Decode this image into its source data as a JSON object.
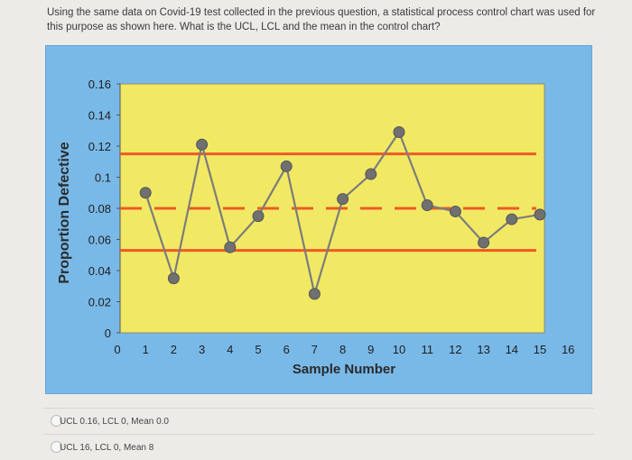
{
  "question": {
    "text": "Using the same data on Covid-19 test collected in the previous question, a statistical process control chart was used for this purpose as shown here. What is the UCL, LCL and the mean in the control chart?"
  },
  "options": [
    {
      "label": "UCL 0.16, LCL 0, Mean 0.0"
    },
    {
      "label": "UCL 16, LCL 0, Mean 8"
    }
  ],
  "colors": {
    "plot_background": "#f1e964",
    "frame_background": "#79b9e8",
    "data_line": "#7c7c7c",
    "data_point": "#707070",
    "control_lines": "#ee5a24"
  },
  "chart_data": {
    "type": "line",
    "xlabel": "Sample Number",
    "ylabel": "Proportion Defective",
    "xlim": [
      0,
      16
    ],
    "ylim": [
      0,
      0.16
    ],
    "x_ticks": [
      "0",
      "1",
      "2",
      "3",
      "4",
      "5",
      "6",
      "7",
      "8",
      "9",
      "10",
      "11",
      "12",
      "13",
      "14",
      "15",
      "16"
    ],
    "y_ticks": [
      "0",
      "0.02",
      "0.04",
      "0.06",
      "0.08",
      "0.1",
      "0.12",
      "0.14",
      "0.16"
    ],
    "grid": false,
    "series": [
      {
        "x": [
          1,
          2,
          3,
          4,
          5,
          6,
          7,
          8,
          9,
          10,
          11,
          12,
          13,
          14,
          15
        ],
        "values": [
          0.09,
          0.035,
          0.121,
          0.055,
          0.075,
          0.107,
          0.025,
          0.086,
          0.102,
          0.129,
          0.082,
          0.078,
          0.058,
          0.073,
          0.076
        ]
      }
    ],
    "control_lines": {
      "ucl": 0.115,
      "center": 0.08,
      "lcl": 0.053
    }
  }
}
